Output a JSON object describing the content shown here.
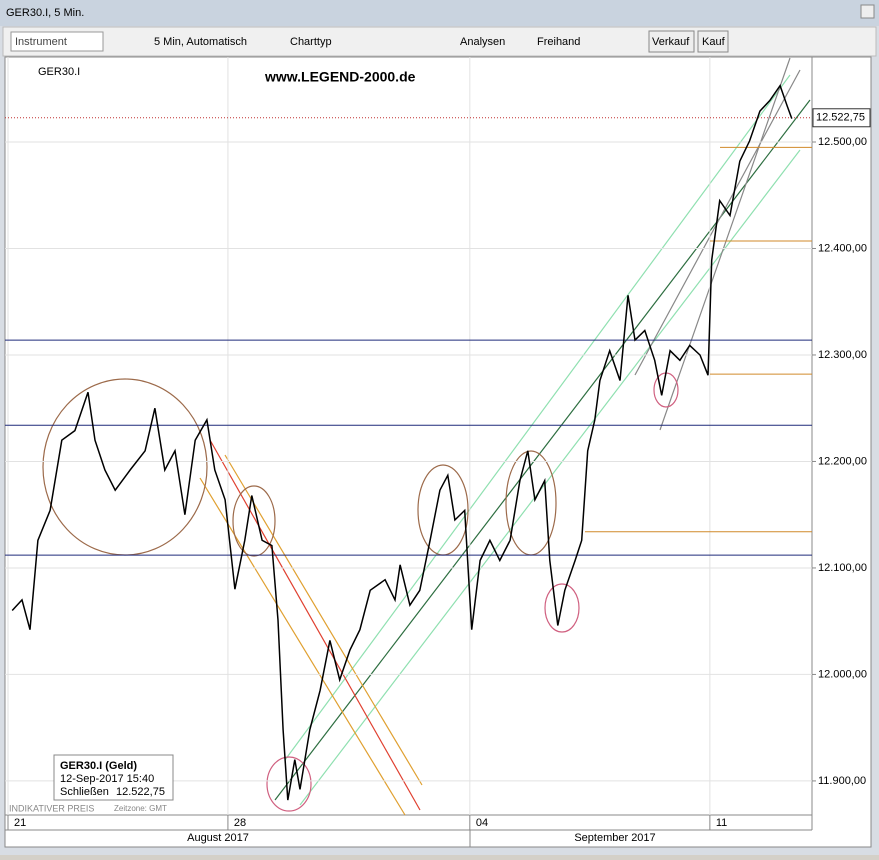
{
  "window_title": "GER30.I, 5 Min.",
  "toolbar": {
    "instrument": "Instrument",
    "interval": "5 Min, Automatisch",
    "chart_type": "Charttyp",
    "analyses": "Analysen",
    "freehand": "Freihand",
    "sell": "Verkauf",
    "buy": "Kauf"
  },
  "chart_data": {
    "type": "line",
    "symbol": "GER30.I",
    "watermark": "www.LEGEND-2000.de",
    "x": [
      0.09,
      0.3,
      0.47,
      0.64,
      0.9,
      1.15,
      1.43,
      1.71,
      1.86,
      2.07,
      2.29,
      2.61,
      2.93,
      3.14,
      3.35,
      3.57,
      3.78,
      4.0,
      4.25,
      4.42,
      4.64,
      4.85,
      5.06,
      5.21,
      5.43,
      5.64,
      5.77,
      5.88,
      5.98,
      6.13,
      6.24,
      6.45,
      6.67,
      6.88,
      7.09,
      7.31,
      7.52,
      7.74,
      8.06,
      8.27,
      8.38,
      8.59,
      8.8,
      9.02,
      9.23,
      9.4,
      9.55,
      9.76,
      9.91,
      10.09,
      10.3,
      10.51,
      10.73,
      10.94,
      11.11,
      11.26,
      11.47,
      11.58,
      11.75,
      11.9,
      12.12,
      12.26,
      12.39,
      12.54,
      12.65,
      12.86,
      13.08,
      13.25,
      13.4,
      13.61,
      13.82,
      13.97,
      14.15,
      14.36,
      14.57,
      14.79,
      14.96,
      15.04,
      15.21,
      15.43,
      15.64,
      15.85,
      16.07,
      16.28,
      16.5,
      16.65,
      16.75
    ],
    "series": [
      {
        "name": "GER30.I",
        "color": "#000000",
        "values": [
          12060,
          12070,
          12042,
          12126,
          12154,
          12220,
          12229,
          12265,
          12220,
          12192,
          12173,
          12192,
          12210,
          12250,
          12192,
          12210,
          12150,
          12220,
          12239,
          12192,
          12164,
          12080,
          12126,
          12168,
          12126,
          12121,
          12051,
          11948,
          11882,
          11920,
          11892,
          11948,
          11985,
          12032,
          11995,
          12023,
          12042,
          12079,
          12089,
          12070,
          12103,
          12065,
          12079,
          12126,
          12173,
          12187,
          12145,
          12154,
          12042,
          12107,
          12126,
          12107,
          12126,
          12182,
          12210,
          12164,
          12182,
          12107,
          12046,
          12079,
          12107,
          12126,
          12210,
          12239,
          12276,
          12304,
          12276,
          12356,
          12314,
          12323,
          12295,
          12262,
          12304,
          12295,
          12309,
          12300,
          12281,
          12389,
          12445,
          12431,
          12482,
          12501,
          12529,
          12539,
          12553,
          12534,
          12522
        ]
      }
    ],
    "xlim": [
      0,
      17.14
    ],
    "xticks": [
      {
        "value": 0,
        "label": "21"
      },
      {
        "value": 4.7,
        "label": "28"
      },
      {
        "value": 9.87,
        "label": "04"
      },
      {
        "value": 15,
        "label": "11"
      }
    ],
    "x_groups": [
      "August 2017",
      "September 2017"
    ],
    "ylim": [
      11868,
      12577
    ],
    "yticks": [
      {
        "value": 11900,
        "label": "11.900,00"
      },
      {
        "value": 12000,
        "label": "12.000,00"
      },
      {
        "value": 12100,
        "label": "12.100,00"
      },
      {
        "value": 12200,
        "label": "12.200,00"
      },
      {
        "value": 12300,
        "label": "12.300,00"
      },
      {
        "value": 12400,
        "label": "12.400,00"
      },
      {
        "value": 12500,
        "label": "12.500,00"
      }
    ],
    "grid": true,
    "levels": [
      {
        "value": 12314,
        "color": "#1f2a7a"
      },
      {
        "value": 12234,
        "color": "#1f2a7a"
      },
      {
        "value": 12112,
        "color": "#1f2a7a"
      },
      {
        "value": 12495,
        "color": "#d08a2a"
      },
      {
        "value": 12407,
        "color": "#d08a2a"
      },
      {
        "value": 12282,
        "color": "#d08a2a"
      },
      {
        "value": 12134,
        "color": "#d08a2a"
      }
    ],
    "last_price": {
      "value": 12522.75,
      "label": "12.522,75"
    },
    "info": {
      "title": "GER30.I (Geld)",
      "time": "12-Sep-2017 15:40",
      "close_label": "Schließen"
    },
    "footer": {
      "price_type": "INDIKATIVER PREIS",
      "timezone": "Zeitzone: GMT"
    }
  }
}
